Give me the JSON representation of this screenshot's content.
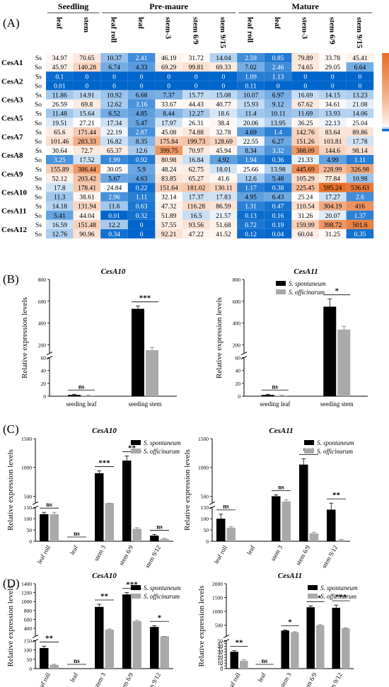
{
  "panel_labels": {
    "A": "(A)",
    "B": "(B)",
    "C": "(C)",
    "D": "(D)"
  },
  "heatmap": {
    "groups": [
      "Seedling",
      "Pre-maure",
      "Mature"
    ],
    "columns": [
      "leaf",
      "stem",
      "leaf roll",
      "leaf",
      "stem-3",
      "stem 6/9",
      "stem 9/15",
      "leaf roll",
      "leaf",
      "stem-3",
      "stem 6/9",
      "stem 9/15"
    ],
    "genes": [
      "CesA1",
      "CesA2",
      "CesA3",
      "CesA5",
      "CesA7",
      "CesA8",
      "CesA9",
      "CesA10",
      "CesA11",
      "CesA12"
    ],
    "species": [
      "Ss",
      "So"
    ],
    "scale_max": "600",
    "scale_min": "0",
    "rows": [
      [
        34.97,
        70.65,
        10.37,
        2.41,
        46.19,
        31.72,
        14.04,
        2.59,
        0.85,
        79.89,
        33.78,
        45.41
      ],
      [
        45.97,
        140.28,
        6.74,
        4.33,
        69.29,
        99.81,
        69.33,
        7.02,
        2.46,
        74.65,
        29.05,
        6.64
      ],
      [
        0.1,
        0,
        0,
        0,
        0,
        0,
        0,
        1.09,
        1.13,
        0,
        0,
        0
      ],
      [
        0.01,
        0,
        0,
        0,
        0,
        0,
        0,
        0.11,
        0,
        0,
        0,
        0
      ],
      [
        11.86,
        14.91,
        10.92,
        6.68,
        7.37,
        15.77,
        15.08,
        10.07,
        6.97,
        16.69,
        14.15,
        13.23
      ],
      [
        26.59,
        69.8,
        12.62,
        3.16,
        33.67,
        44.43,
        40.77,
        15.93,
        9.12,
        67.62,
        34.61,
        21.08
      ],
      [
        11.48,
        15.64,
        6.52,
        4.85,
        8.44,
        12.27,
        18.6,
        11.4,
        10.11,
        11.69,
        13.93,
        14.06
      ],
      [
        19.51,
        27.21,
        17.34,
        5.47,
        17.97,
        26.31,
        38.4,
        20.06,
        13.95,
        36.25,
        22.13,
        25.04
      ],
      [
        65.6,
        171.44,
        22.19,
        2.87,
        45.08,
        74.88,
        32.78,
        4.69,
        1.4,
        142.76,
        83.64,
        89.86
      ],
      [
        101.46,
        283.33,
        16.82,
        8.35,
        175.84,
        199.73,
        128.69,
        22.55,
        6.27,
        151.26,
        103.81,
        17.78
      ],
      [
        30.64,
        72.7,
        65.37,
        12.6,
        399.75,
        70.97,
        45.94,
        8.34,
        3.32,
        388.09,
        144.6,
        98.14
      ],
      [
        3.25,
        17.52,
        1.99,
        0.92,
        80.98,
        16.84,
        4.92,
        1.94,
        0.36,
        21.33,
        4.99,
        1.11
      ],
      [
        155.89,
        386.44,
        30.05,
        5.9,
        48.24,
        62.75,
        18.01,
        25.66,
        13.98,
        445.69,
        228.99,
        326.98
      ],
      [
        52.12,
        203.42,
        5.67,
        4.63,
        83.85,
        65.27,
        41.6,
        12.6,
        5.48,
        105.29,
        77.84,
        10.98
      ],
      [
        17.8,
        178.41,
        24.84,
        0.22,
        151.64,
        181.02,
        130.11,
        1.17,
        0.38,
        225.45,
        595.24,
        536.63
      ],
      [
        11.3,
        38.61,
        2.96,
        1.11,
        32.14,
        17.37,
        17.83,
        4.95,
        6.43,
        25.24,
        17.27,
        2.6
      ],
      [
        14.18,
        131.94,
        11.6,
        0.63,
        47.32,
        116.28,
        86.59,
        1.31,
        0.47,
        110.54,
        304.19,
        416
      ],
      [
        5.41,
        44.04,
        0.01,
        0.32,
        51.89,
        16.5,
        21.57,
        0.13,
        0.16,
        31.26,
        20.07,
        1.37
      ],
      [
        16.59,
        151.48,
        12.2,
        0,
        57.55,
        93.56,
        51.68,
        0.72,
        0.19,
        159.99,
        398.72,
        501.6
      ],
      [
        12.76,
        90.96,
        0.34,
        0,
        92.21,
        47.22,
        41.52,
        0.12,
        0.04,
        60.04,
        31.25,
        0.35
      ]
    ]
  },
  "legend": {
    "ss": "S. spontaneum",
    "so": "S. officinarum"
  },
  "ylabel": "Relative expression levels",
  "charts": [
    {
      "id": "B1",
      "title": "CesA10",
      "categories": [
        "seeding leaf",
        "seeding stem"
      ],
      "ss": [
        2,
        530
      ],
      "so": [
        1,
        150
      ],
      "ss_err": [
        1,
        25
      ],
      "so_err": [
        0.5,
        25
      ],
      "sig": [
        "ns",
        "***"
      ],
      "ticks_low": [
        0,
        20,
        40,
        60
      ],
      "ticks_high": [
        200,
        400,
        600,
        800
      ],
      "break_low": 60,
      "break_high": 120,
      "max": 800
    },
    {
      "id": "B2",
      "title": "CesA11",
      "categories": [
        "seeding leaf",
        "seeding stem"
      ],
      "ss": [
        2,
        550
      ],
      "so": [
        1,
        340
      ],
      "ss_err": [
        1,
        70
      ],
      "so_err": [
        0.5,
        30
      ],
      "sig": [
        "ns",
        "*"
      ],
      "ticks_low": [
        0,
        20,
        40,
        60
      ],
      "ticks_high": [
        200,
        400,
        600,
        800
      ],
      "break_low": 60,
      "break_high": 120,
      "max": 800
    },
    {
      "id": "C1",
      "title": "CesA10",
      "categories": [
        "leaf roll",
        "leaf",
        "stem 3",
        "stem 6/9",
        "stem 9/12"
      ],
      "ss": [
        120,
        0,
        900,
        1120,
        25
      ],
      "so": [
        120,
        0,
        200,
        55,
        10
      ],
      "ss_err": [
        8,
        0,
        40,
        80,
        5
      ],
      "so_err": [
        8,
        0,
        15,
        5,
        3
      ],
      "sig": [
        "ns",
        "ns",
        "***",
        "**",
        "ns"
      ],
      "ticks_low": [
        0,
        50,
        100,
        150
      ],
      "ticks_high": [
        500,
        1000,
        1500
      ],
      "break_low": 150,
      "break_high": 380,
      "max": 1500
    },
    {
      "id": "C2",
      "title": "CesA11",
      "categories": [
        "leaf roll",
        "leaf",
        "stem 3",
        "stem 6/9",
        "stem 9/12"
      ],
      "ss": [
        100,
        0,
        500,
        1050,
        140
      ],
      "so": [
        60,
        0,
        410,
        35,
        5
      ],
      "ss_err": [
        20,
        0,
        25,
        100,
        20
      ],
      "so_err": [
        5,
        0,
        30,
        5,
        2
      ],
      "sig": [
        "ns",
        "",
        "ns",
        "***",
        "**"
      ],
      "ticks_low": [
        0,
        50,
        100,
        150
      ],
      "ticks_high": [
        500,
        1000,
        1500
      ],
      "break_low": 150,
      "break_high": 380,
      "max": 1500
    },
    {
      "id": "D1",
      "title": "CesA10",
      "categories": [
        "leaf roll",
        "leaf",
        "stem 3",
        "stem 6/9",
        "stem 9/12"
      ],
      "ss": [
        110,
        0,
        880,
        1160,
        430
      ],
      "so": [
        20,
        0,
        370,
        560,
        170
      ],
      "ss_err": [
        10,
        0,
        60,
        40,
        30
      ],
      "so_err": [
        3,
        0,
        15,
        20,
        10
      ],
      "sig": [
        "**",
        "ns",
        "**",
        "***",
        "*"
      ],
      "ticks_low": [
        0,
        50,
        100,
        150
      ],
      "ticks_high": [
        400,
        600,
        800,
        1000,
        1200,
        1400
      ],
      "break_low": 150,
      "break_high": 220,
      "max": 1400
    },
    {
      "id": "D2",
      "title": "CesA11",
      "categories": [
        "leaf roll",
        "leaf",
        "stem 3",
        "stem 6/9",
        "stem 9/12"
      ],
      "ss": [
        30,
        0,
        310,
        1150,
        1130
      ],
      "so": [
        14,
        0,
        250,
        500,
        390
      ],
      "ss_err": [
        2,
        0,
        20,
        50,
        100
      ],
      "so_err": [
        2,
        0,
        15,
        20,
        15
      ],
      "sig": [
        "**",
        "ns",
        "*",
        "***",
        "***"
      ],
      "ticks_low": [
        0,
        5,
        10,
        15,
        20,
        25,
        30,
        35,
        40,
        45,
        50
      ],
      "ticks_high": [
        500,
        1000,
        1500,
        2000
      ],
      "break_low": 50,
      "break_high": 100,
      "max": 2000
    }
  ]
}
